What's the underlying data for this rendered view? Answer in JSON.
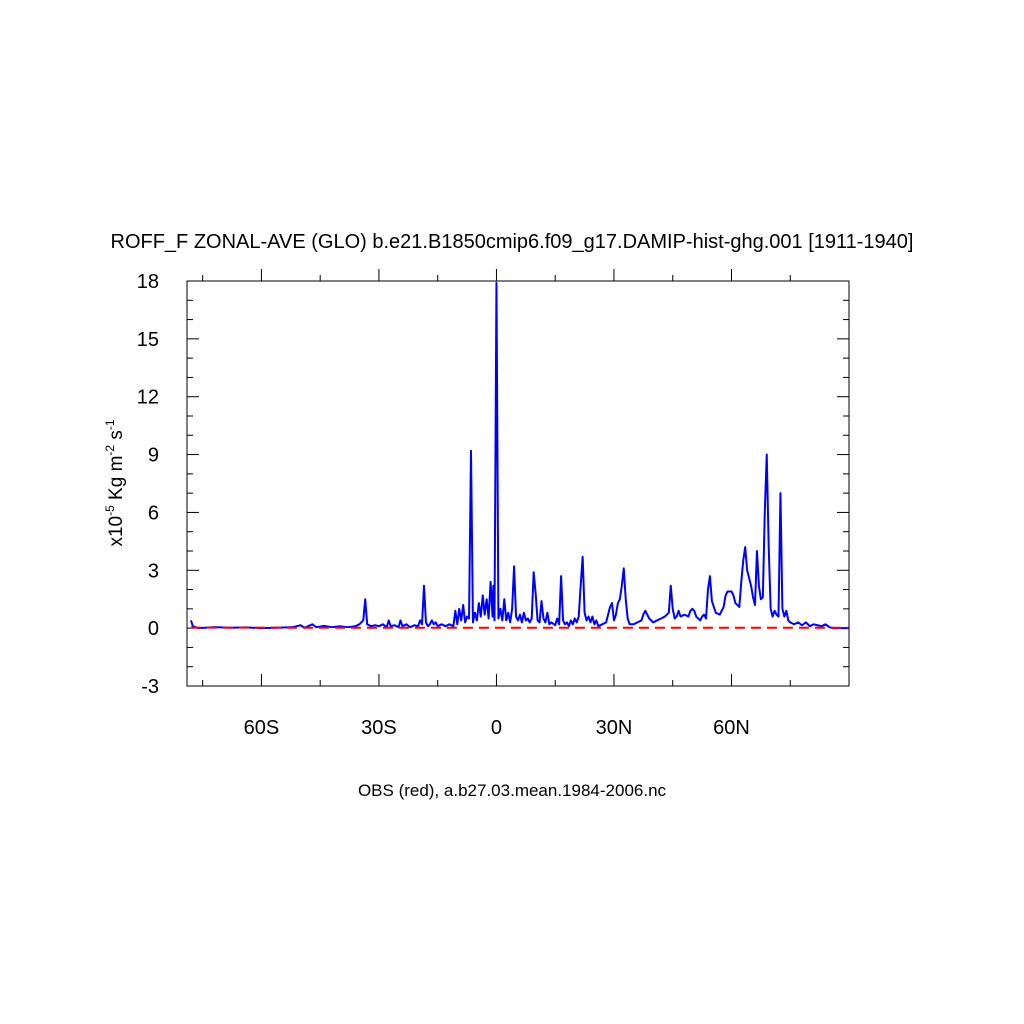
{
  "chart_data": {
    "type": "line",
    "title": "ROFF_F ZONAL-AVE (GLO) b.e21.B1850cmip6.f09_g17.DAMIP-hist-ghg.001 [1911-1940]",
    "ylabel": {
      "base": "x10",
      "exp1": "-5",
      "mid": " Kg m",
      "exp2": "-2",
      "mid2": " s",
      "exp3": "-1"
    },
    "footnote": "OBS (red), a.b27.03.mean.1984-2006.nc",
    "xlim": [
      -79,
      90
    ],
    "ylim": [
      -3,
      18
    ],
    "x_ticks": [
      {
        "value": -60,
        "label": "60S"
      },
      {
        "value": -30,
        "label": "30S"
      },
      {
        "value": 0,
        "label": "0"
      },
      {
        "value": 30,
        "label": "30N"
      },
      {
        "value": 60,
        "label": "60N"
      }
    ],
    "y_ticks": [
      {
        "value": -3,
        "label": "-3"
      },
      {
        "value": 0,
        "label": "0"
      },
      {
        "value": 3,
        "label": "3"
      },
      {
        "value": 6,
        "label": "6"
      },
      {
        "value": 9,
        "label": "9"
      },
      {
        "value": 12,
        "label": "12"
      },
      {
        "value": 15,
        "label": "15"
      },
      {
        "value": 18,
        "label": "18"
      }
    ],
    "series": [
      {
        "color": "#0000ff",
        "style": "solid",
        "points": [
          [
            -78,
            0.4
          ],
          [
            -77.5,
            0.1
          ],
          [
            -76,
            0.0
          ],
          [
            -72,
            0.05
          ],
          [
            -68,
            0.02
          ],
          [
            -64,
            0.04
          ],
          [
            -60,
            0.0
          ],
          [
            -56,
            0.02
          ],
          [
            -52,
            0.05
          ],
          [
            -50,
            0.15
          ],
          [
            -49,
            0.02
          ],
          [
            -47,
            0.2
          ],
          [
            -46,
            0.05
          ],
          [
            -44,
            0.12
          ],
          [
            -42,
            0.05
          ],
          [
            -40,
            0.1
          ],
          [
            -38,
            0.05
          ],
          [
            -36,
            0.1
          ],
          [
            -35,
            0.2
          ],
          [
            -34,
            0.4
          ],
          [
            -33.5,
            1.5
          ],
          [
            -33,
            0.2
          ],
          [
            -32,
            0.1
          ],
          [
            -31,
            0.15
          ],
          [
            -30,
            0.1
          ],
          [
            -29,
            0.2
          ],
          [
            -28,
            0.05
          ],
          [
            -27.5,
            0.4
          ],
          [
            -27,
            0.1
          ],
          [
            -26,
            0.15
          ],
          [
            -25,
            0.05
          ],
          [
            -24.5,
            0.4
          ],
          [
            -24,
            0.1
          ],
          [
            -23,
            0.2
          ],
          [
            -22,
            0.05
          ],
          [
            -21,
            0.15
          ],
          [
            -20,
            0.1
          ],
          [
            -19.5,
            0.4
          ],
          [
            -19,
            0.2
          ],
          [
            -18.5,
            2.2
          ],
          [
            -18,
            0.3
          ],
          [
            -17.5,
            0.1
          ],
          [
            -17,
            0.2
          ],
          [
            -16.5,
            0.4
          ],
          [
            -16,
            0.2
          ],
          [
            -15.5,
            0.3
          ],
          [
            -15,
            0.1
          ],
          [
            -14,
            0.2
          ],
          [
            -13,
            0.1
          ],
          [
            -12,
            0.2
          ],
          [
            -11,
            0.1
          ],
          [
            -10.5,
            0.9
          ],
          [
            -10,
            0.2
          ],
          [
            -9.5,
            1.0
          ],
          [
            -9,
            0.4
          ],
          [
            -8.5,
            1.2
          ],
          [
            -8,
            0.3
          ],
          [
            -7.5,
            0.6
          ],
          [
            -7,
            0.5
          ],
          [
            -6.5,
            9.2
          ],
          [
            -6,
            0.3
          ],
          [
            -5.5,
            0.8
          ],
          [
            -5,
            0.4
          ],
          [
            -4.5,
            1.3
          ],
          [
            -4,
            0.6
          ],
          [
            -3.5,
            1.7
          ],
          [
            -3,
            0.7
          ],
          [
            -2.5,
            1.5
          ],
          [
            -2,
            0.5
          ],
          [
            -1.5,
            2.4
          ],
          [
            -1,
            0.6
          ],
          [
            -0.8,
            2.2
          ],
          [
            -0.5,
            0.4
          ],
          [
            0,
            17.9
          ],
          [
            0.5,
            0.5
          ],
          [
            1,
            1.0
          ],
          [
            1.5,
            0.4
          ],
          [
            2,
            1.5
          ],
          [
            2.5,
            0.4
          ],
          [
            3,
            0.8
          ],
          [
            3.5,
            0.3
          ],
          [
            4,
            1.0
          ],
          [
            4.5,
            3.2
          ],
          [
            5,
            0.6
          ],
          [
            5.5,
            0.4
          ],
          [
            6,
            0.7
          ],
          [
            6.5,
            0.3
          ],
          [
            7,
            0.8
          ],
          [
            7.5,
            0.4
          ],
          [
            8,
            0.5
          ],
          [
            8.5,
            0.3
          ],
          [
            9,
            0.5
          ],
          [
            9.5,
            2.9
          ],
          [
            10,
            1.8
          ],
          [
            10.5,
            0.4
          ],
          [
            11,
            0.3
          ],
          [
            11.5,
            1.4
          ],
          [
            12,
            0.5
          ],
          [
            12.5,
            0.3
          ],
          [
            13,
            0.8
          ],
          [
            13.5,
            0.2
          ],
          [
            14,
            0.3
          ],
          [
            15,
            0.15
          ],
          [
            15.5,
            0.5
          ],
          [
            16,
            0.2
          ],
          [
            16.5,
            2.7
          ],
          [
            17,
            0.4
          ],
          [
            17.5,
            0.2
          ],
          [
            18,
            0.3
          ],
          [
            18.5,
            0.1
          ],
          [
            19,
            0.4
          ],
          [
            19.5,
            0.2
          ],
          [
            20,
            0.5
          ],
          [
            20.5,
            0.3
          ],
          [
            21,
            0.6
          ],
          [
            21.5,
            2.2
          ],
          [
            22,
            3.7
          ],
          [
            22.5,
            0.8
          ],
          [
            23,
            0.4
          ],
          [
            23.5,
            0.6
          ],
          [
            24,
            0.3
          ],
          [
            24.5,
            0.6
          ],
          [
            25,
            0.2
          ],
          [
            25.5,
            0.4
          ],
          [
            26,
            0.1
          ],
          [
            27,
            0.2
          ],
          [
            28,
            0.3
          ],
          [
            29,
            1.1
          ],
          [
            29.5,
            1.3
          ],
          [
            30,
            0.4
          ],
          [
            30.5,
            0.7
          ],
          [
            31,
            1.3
          ],
          [
            31.5,
            1.5
          ],
          [
            32,
            2.2
          ],
          [
            32.5,
            3.1
          ],
          [
            33,
            1.5
          ],
          [
            33.5,
            0.5
          ],
          [
            34,
            0.2
          ],
          [
            35,
            0.2
          ],
          [
            36,
            0.3
          ],
          [
            37,
            0.4
          ],
          [
            37.5,
            0.7
          ],
          [
            38,
            0.9
          ],
          [
            38.5,
            0.7
          ],
          [
            39,
            0.5
          ],
          [
            40,
            0.3
          ],
          [
            41,
            0.4
          ],
          [
            42,
            0.5
          ],
          [
            43,
            0.6
          ],
          [
            44,
            0.8
          ],
          [
            44.5,
            2.2
          ],
          [
            45,
            1.0
          ],
          [
            45.5,
            0.5
          ],
          [
            46,
            0.6
          ],
          [
            46.5,
            0.9
          ],
          [
            47,
            0.6
          ],
          [
            48,
            0.7
          ],
          [
            49,
            0.6
          ],
          [
            49.5,
            0.9
          ],
          [
            50,
            1.0
          ],
          [
            50.5,
            0.9
          ],
          [
            51,
            0.6
          ],
          [
            52,
            0.4
          ],
          [
            52.5,
            0.6
          ],
          [
            53,
            0.7
          ],
          [
            53.5,
            0.5
          ],
          [
            54,
            2.0
          ],
          [
            54.5,
            2.7
          ],
          [
            55,
            1.4
          ],
          [
            56,
            0.8
          ],
          [
            57,
            0.7
          ],
          [
            58,
            1.1
          ],
          [
            58.5,
            1.7
          ],
          [
            59,
            1.9
          ],
          [
            60,
            1.9
          ],
          [
            60.5,
            1.7
          ],
          [
            61,
            1.3
          ],
          [
            62,
            1.1
          ],
          [
            62.5,
            2.4
          ],
          [
            63,
            3.5
          ],
          [
            63.5,
            4.2
          ],
          [
            64,
            3.0
          ],
          [
            65,
            2.2
          ],
          [
            65.5,
            1.6
          ],
          [
            66,
            1.2
          ],
          [
            66.5,
            4.0
          ],
          [
            67,
            2.2
          ],
          [
            67.5,
            1.5
          ],
          [
            68,
            1.6
          ],
          [
            68.5,
            6.0
          ],
          [
            69,
            9.0
          ],
          [
            69.5,
            4.2
          ],
          [
            70,
            1.0
          ],
          [
            70.5,
            0.6
          ],
          [
            71,
            0.9
          ],
          [
            71.5,
            0.7
          ],
          [
            72,
            0.6
          ],
          [
            72.5,
            7.0
          ],
          [
            73,
            1.0
          ],
          [
            73.5,
            0.6
          ],
          [
            74,
            0.9
          ],
          [
            74.5,
            0.4
          ],
          [
            75,
            0.3
          ],
          [
            76,
            0.2
          ],
          [
            77,
            0.3
          ],
          [
            78,
            0.15
          ],
          [
            79,
            0.3
          ],
          [
            80,
            0.1
          ],
          [
            81,
            0.2
          ],
          [
            82,
            0.15
          ],
          [
            83,
            0.1
          ],
          [
            84,
            0.2
          ],
          [
            85,
            0.05
          ],
          [
            86,
            0.0
          ],
          [
            88,
            0.0
          ],
          [
            90,
            0.0
          ]
        ]
      },
      {
        "color": "#ff0000",
        "style": "dashed",
        "points": [
          [
            -78,
            0.03
          ],
          [
            -40,
            0.02
          ],
          [
            0,
            0.02
          ],
          [
            40,
            0.02
          ],
          [
            90,
            0.02
          ]
        ]
      }
    ]
  }
}
